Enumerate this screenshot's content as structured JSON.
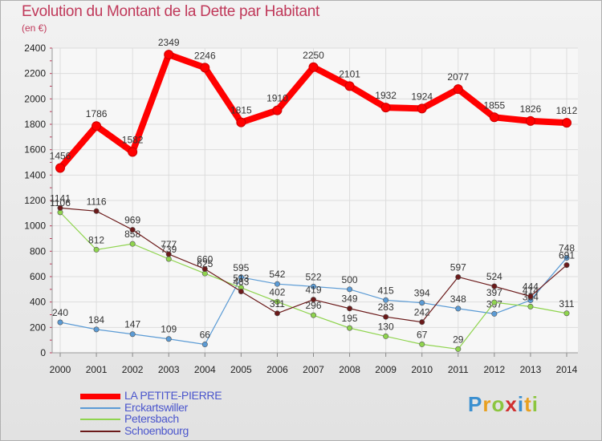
{
  "chart_data": {
    "type": "line",
    "title": "Evolution du Montant de la Dette par Habitant",
    "subtitle": "(en €)",
    "xlabel": "",
    "ylabel": "",
    "ylim": [
      0,
      2400
    ],
    "yticks": [
      0,
      200,
      400,
      600,
      800,
      1000,
      1200,
      1400,
      1600,
      1800,
      2000,
      2200,
      2400
    ],
    "categories": [
      "2000",
      "2001",
      "2002",
      "2003",
      "2004",
      "2005",
      "2006",
      "2007",
      "2008",
      "2009",
      "2010",
      "2011",
      "2012",
      "2013",
      "2014"
    ],
    "grid": true,
    "legend_position": "bottom-left",
    "series": [
      {
        "name": "LA PETITE-PIERRE",
        "color": "#ff0000",
        "values": [
          1456,
          1786,
          1582,
          2349,
          2246,
          1815,
          1910,
          2250,
          2101,
          1932,
          1924,
          2077,
          1855,
          1826,
          1812
        ]
      },
      {
        "name": "Erckartswiller",
        "color": "#5b9bd5",
        "values": [
          240,
          184,
          147,
          109,
          66,
          595,
          542,
          522,
          500,
          415,
          394,
          348,
          307,
          414,
          748
        ]
      },
      {
        "name": "Petersbach",
        "color": "#8fd44e",
        "values": [
          1106,
          812,
          858,
          739,
          625,
          513,
          402,
          296,
          195,
          130,
          67,
          29,
          397,
          364,
          311
        ]
      },
      {
        "name": "Schoenbourg",
        "color": "#6b1a1a",
        "values": [
          1141,
          1116,
          969,
          777,
          660,
          483,
          311,
          419,
          349,
          283,
          242,
          597,
          524,
          444,
          691
        ]
      }
    ]
  },
  "brand": {
    "letters": [
      "P",
      "r",
      "o",
      "x",
      "i",
      "t",
      "i"
    ],
    "colors": [
      "#3a8fd0",
      "#e8a020",
      "#8cc63f",
      "#d03030",
      "#3a8fd0",
      "#e8a020",
      "#8cc63f"
    ]
  }
}
